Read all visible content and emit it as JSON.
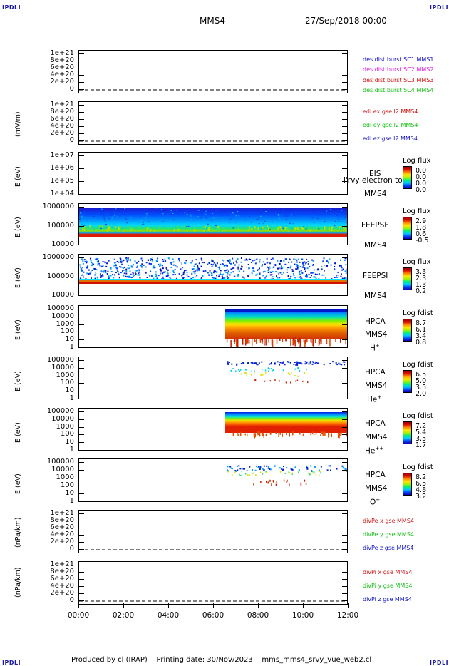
{
  "corners": {
    "tl": "IPDLI",
    "tr": "IPDLI",
    "bl": "IPDLI",
    "br": "IPDLI"
  },
  "header": {
    "spacecraft": "MMS4",
    "datetime": "27/Sep/2018 00:00"
  },
  "footer": {
    "text": "Produced by cl (IRAP)    Printing date: 30/Nov/2023    mms_mms4_srvy_vue_web2.cl"
  },
  "colors": {
    "sc1": "#1010c8",
    "sc2": "#e020e0",
    "sc3": "#d01010",
    "sc4": "#10c010",
    "x": "#d01010",
    "y": "#10c010",
    "z": "#1010c8"
  },
  "chart_data": [
    {
      "type": "line",
      "id": "p1",
      "ylabel": "",
      "yticks": [
        "1e+21",
        "8e+20",
        "6e+20",
        "4e+20",
        "2e+20",
        "0"
      ],
      "series": [
        {
          "name": "des dist burst SC1 MMS1"
        },
        {
          "name": "des dist burst SC2 MMS2"
        },
        {
          "name": "des dist burst SC3 MMS3"
        },
        {
          "name": "des dist burst SC4 MMS4"
        }
      ]
    },
    {
      "type": "line",
      "id": "p2",
      "ylabel": "(mV/m)",
      "yticks": [
        "1e+21",
        "8e+20",
        "6e+20",
        "4e+20",
        "2e+20",
        "0"
      ],
      "series": [
        {
          "name": "edi ex gse l2 MMS4"
        },
        {
          "name": "edi ey gse l2 MMS4"
        },
        {
          "name": "edi ez gse l2 MMS4"
        }
      ]
    },
    {
      "type": "heatmap",
      "id": "p3",
      "ylabel": "E (eV)",
      "yticks": [
        "1e+07",
        "1e+06",
        "1e+05",
        "1e+04"
      ],
      "instrument": [
        "EIS",
        "MMS4"
      ],
      "overlay": "l'rvy electron to",
      "colorbar": {
        "title": "Log flux",
        "values": [
          "0.0",
          "0.0",
          "0.0",
          "0.0"
        ]
      }
    },
    {
      "type": "heatmap",
      "id": "p4",
      "ylabel": "E (eV)",
      "yticks": [
        "1000000",
        "100000",
        "10000"
      ],
      "instrument": [
        "FEEPSE",
        "MMS4"
      ],
      "colorbar": {
        "title": "Log flux",
        "values": [
          "2.9",
          "1.8",
          "0.6",
          "-0.5"
        ]
      }
    },
    {
      "type": "heatmap",
      "id": "p5",
      "ylabel": "E (eV)",
      "yticks": [
        "1000000",
        "100000",
        "10000"
      ],
      "instrument": [
        "FEEPSI",
        "MMS4"
      ],
      "colorbar": {
        "title": "Log flux",
        "values": [
          "3.3",
          "2.3",
          "1.3",
          "0.2"
        ]
      }
    },
    {
      "type": "heatmap",
      "id": "p6",
      "ylabel": "E (eV)",
      "yticks": [
        "100000",
        "10000",
        "1000",
        "100",
        "10",
        "1"
      ],
      "instrument": [
        "HPCA",
        "MMS4"
      ],
      "species": "H",
      "species_sup": "+",
      "colorbar": {
        "title": "Log fdist",
        "values": [
          "8.7",
          "6.1",
          "3.4",
          "0.8"
        ]
      }
    },
    {
      "type": "heatmap",
      "id": "p7",
      "ylabel": "E (eV)",
      "yticks": [
        "100000",
        "10000",
        "1000",
        "100",
        "10",
        "1"
      ],
      "instrument": [
        "HPCA",
        "MMS4"
      ],
      "species": "He",
      "species_sup": "+",
      "colorbar": {
        "title": "Log fdist",
        "values": [
          "6.5",
          "5.0",
          "3.5",
          "2.0"
        ]
      }
    },
    {
      "type": "heatmap",
      "id": "p8",
      "ylabel": "E (eV)",
      "yticks": [
        "100000",
        "10000",
        "1000",
        "100",
        "10",
        "1"
      ],
      "instrument": [
        "HPCA",
        "MMS4"
      ],
      "species": "He",
      "species_sup": "++",
      "colorbar": {
        "title": "Log fdist",
        "values": [
          "7.2",
          "5.4",
          "3.5",
          "1.7"
        ]
      }
    },
    {
      "type": "heatmap",
      "id": "p9",
      "ylabel": "E (eV)",
      "yticks": [
        "100000",
        "10000",
        "1000",
        "100",
        "10",
        "1"
      ],
      "instrument": [
        "HPCA",
        "MMS4"
      ],
      "species": "O",
      "species_sup": "+",
      "colorbar": {
        "title": "Log fdist",
        "values": [
          "8.2",
          "6.5",
          "4.8",
          "3.2"
        ]
      }
    },
    {
      "type": "line",
      "id": "p10",
      "ylabel": "(nPa/km)",
      "yticks": [
        "1e+21",
        "8e+20",
        "6e+20",
        "4e+20",
        "2e+20",
        "0"
      ],
      "series": [
        {
          "name": "divPe x gse MMS4"
        },
        {
          "name": "divPe y gse MMS4"
        },
        {
          "name": "divPe z gse MMS4"
        }
      ]
    },
    {
      "type": "line",
      "id": "p11",
      "ylabel": "(nPa/km)",
      "yticks": [
        "1e+21",
        "8e+20",
        "6e+20",
        "4e+20",
        "2e+20",
        "0"
      ],
      "series": [
        {
          "name": "divPi x gse MMS4"
        },
        {
          "name": "divPi y gse MMS4"
        },
        {
          "name": "divPi z gse MMS4"
        }
      ]
    }
  ],
  "xaxis": {
    "ticks": [
      "00:00",
      "02:00",
      "04:00",
      "06:00",
      "08:00",
      "10:00",
      "12:00"
    ]
  }
}
